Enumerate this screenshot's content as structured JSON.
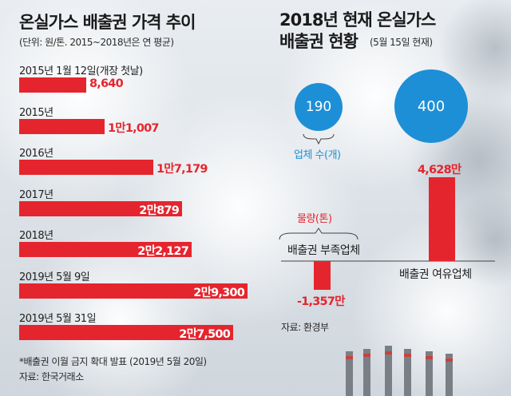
{
  "chart_data": [
    {
      "type": "bar",
      "title": "온실가스 배출권 가격 추이",
      "subtitle": "(단위: 원/톤. 2015~2018년은 연 평균)",
      "categories": [
        "2015년 1월 12일(개장 첫날)",
        "2015년",
        "2016년",
        "2017년",
        "2018년",
        "2019년 5월 9일",
        "2019년 5월 31일"
      ],
      "values": [
        8640,
        11007,
        17179,
        20879,
        22127,
        29300,
        27500
      ],
      "value_labels": [
        "8,640",
        "1만1,007",
        "1만7,179",
        "2만879",
        "2만2,127",
        "2만9,300",
        "2만7,500"
      ],
      "xlim": [
        0,
        29300
      ],
      "color": "#e5252e",
      "footnote": "*배출권 이월 금지 확대 발표 (2019년 5월 20일)",
      "source": "자료: 한국거래소"
    },
    {
      "type": "bar",
      "title": "2018년 현재 온실가스 배출권 현황",
      "subtitle": "(5월 15일 현재)",
      "categories": [
        "배출권 부족업체",
        "배출권 여유업체"
      ],
      "series": [
        {
          "name": "업체 수(개)",
          "values": [
            190,
            400
          ],
          "value_labels": [
            "190",
            "400"
          ],
          "color": "#1d8fd6"
        },
        {
          "name": "물량(톤)",
          "values": [
            -13570000,
            46280000
          ],
          "value_labels": [
            "-1,357만",
            "4,628만"
          ],
          "color": "#e5252e"
        }
      ],
      "source": "자료: 환경부"
    }
  ]
}
